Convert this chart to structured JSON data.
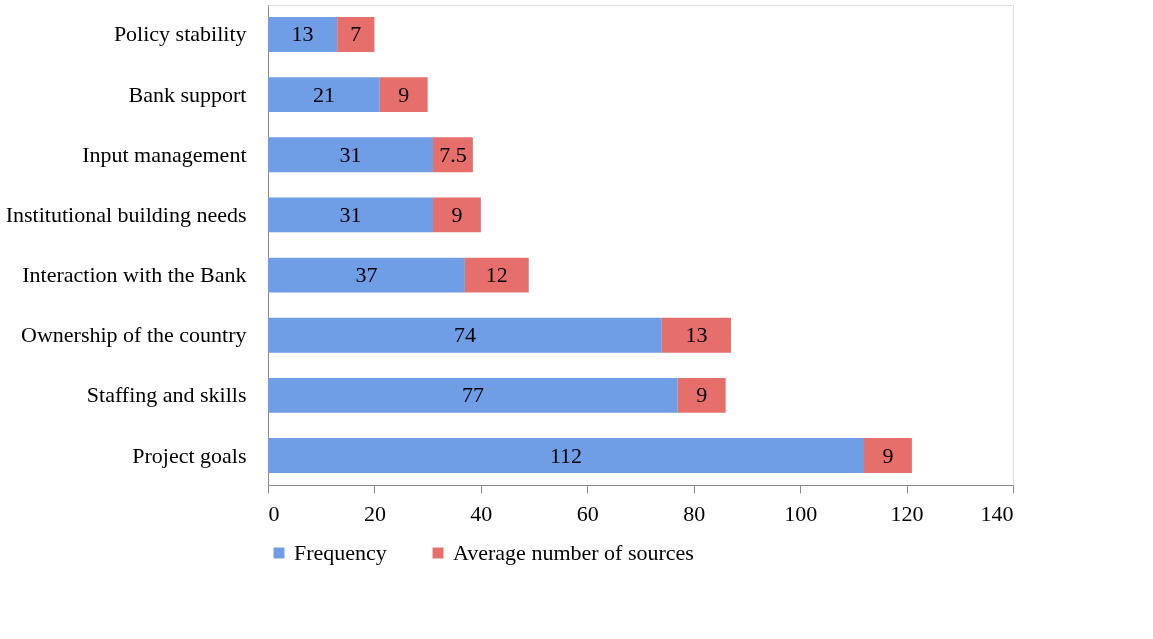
{
  "chart_data": {
    "type": "bar",
    "orientation": "horizontal",
    "stacked": true,
    "data_labels": true,
    "grid": false,
    "legend": "bottom",
    "categories": [
      "Policy stability",
      "Bank support",
      "Input management",
      "Institutional building needs",
      "Interaction with the Bank",
      "Ownership of the country",
      "Staffing and skills",
      "Project goals"
    ],
    "series": [
      {
        "name": "Frequency",
        "color": "#6f9de6",
        "values": [
          13,
          21,
          31,
          31,
          37,
          74,
          77,
          112
        ]
      },
      {
        "name": "Average number of sources",
        "color": "#e66f6c",
        "values": [
          7,
          9,
          7.5,
          9,
          12,
          13,
          9,
          9
        ]
      }
    ],
    "xlim": [
      0,
      140
    ],
    "xticks": [
      0,
      20,
      40,
      60,
      80,
      100,
      120,
      140
    ]
  }
}
